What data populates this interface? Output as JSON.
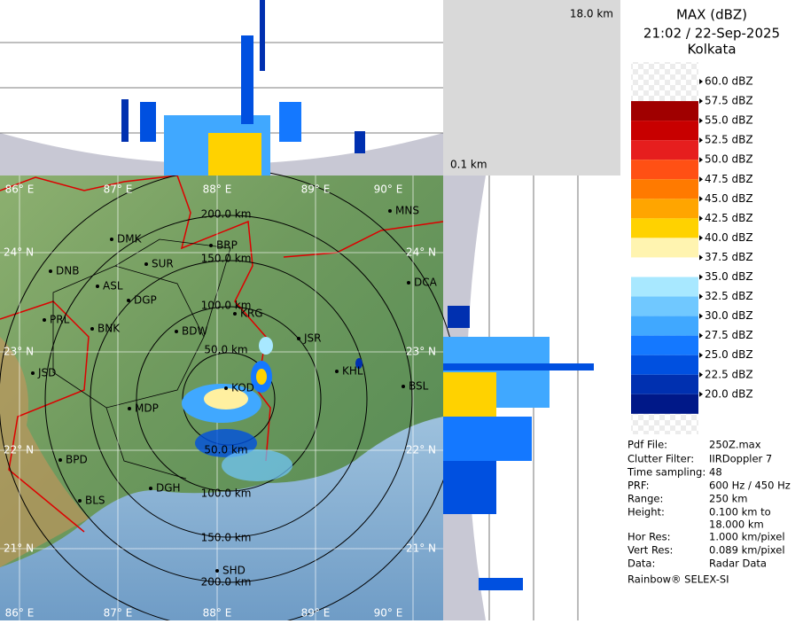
{
  "header": {
    "title": "MAX (dBZ)",
    "datetime": "21:02 / 22-Sep-2025",
    "station": "Kolkata"
  },
  "cross_section": {
    "top_height": "18.0 km",
    "bottom_height": "0.1 km"
  },
  "legend": {
    "levels": [
      "60.0 dBZ",
      "57.5 dBZ",
      "55.0 dBZ",
      "52.5 dBZ",
      "50.0 dBZ",
      "47.5 dBZ",
      "45.0 dBZ",
      "42.5 dBZ",
      "40.0 dBZ",
      "37.5 dBZ",
      "35.0 dBZ",
      "32.5 dBZ",
      "30.0 dBZ",
      "27.5 dBZ",
      "25.0 dBZ",
      "22.5 dBZ",
      "20.0 dBZ"
    ]
  },
  "info": {
    "rows": [
      [
        "Pdf File:",
        "250Z.max"
      ],
      [
        "Clutter Filter:",
        "IIRDoppler 7"
      ],
      [
        "Time sampling:",
        "48"
      ],
      [
        "PRF:",
        "600 Hz / 450 Hz"
      ],
      [
        "Range:",
        "250 km"
      ],
      [
        "Height:",
        "0.100 km to"
      ],
      [
        "",
        "18.000 km"
      ],
      [
        "Hor Res:",
        "1.000 km/pixel"
      ],
      [
        "Vert Res:",
        "0.089 km/pixel"
      ],
      [
        "Data:",
        "Radar Data"
      ]
    ],
    "footer": "Rainbow® SELEX-SI"
  },
  "map": {
    "longitudes": [
      "86° E",
      "87° E",
      "88° E",
      "89° E",
      "90° E"
    ],
    "latitudes": [
      "24° N",
      "23° N",
      "22° N",
      "21° N"
    ],
    "ranges": [
      "50.0 km",
      "100.0 km",
      "150.0 km",
      "200.0 km"
    ],
    "cities": [
      "MNS",
      "DMK",
      "BRP",
      "DNB",
      "SUR",
      "ASL",
      "DGP",
      "DCA",
      "PRL",
      "BNK",
      "KRG",
      "BDW",
      "JSR",
      "KHL",
      "JSD",
      "KOD",
      "BSL",
      "MDP",
      "BPD",
      "DGH",
      "BLS",
      "SHD"
    ]
  }
}
